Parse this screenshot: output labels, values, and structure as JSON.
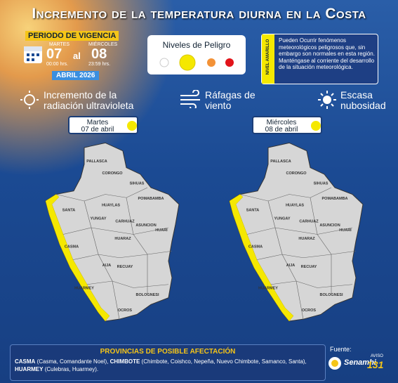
{
  "header": {
    "title": "Incremento de la temperatura diurna en la Costa"
  },
  "period": {
    "label": "PERIODO DE VIGENCIA",
    "start_day": "MARTES",
    "start_date": "07",
    "start_time": "00:00 hrs.",
    "connector": "al",
    "end_day": "MIÉRCOLES",
    "end_date": "08",
    "end_time": "23:59 hrs.",
    "month": "ABRIL 2026"
  },
  "levels": {
    "title": "Niveles de Peligro"
  },
  "notice": {
    "level": "NIVEL AMARILLO",
    "text": "Pueden Ocurrir fenómenos meteorológicos peligrosos que, sin embargo son normales en esta región. Manténgase al corriente del desarrollo de la situación meteorológica."
  },
  "phenomena": [
    "Incremento de la radiación ultravioleta",
    "Ráfagas de viento",
    "Escasa nubosidad"
  ],
  "maps": [
    {
      "day": "Martes",
      "date": "07 de abril",
      "provinces": [
        "PALLASCA",
        "CORONGO",
        "SIHUAS",
        "POMABAMBA",
        "HUAYLAS",
        "SANTA",
        "YUNGAY",
        "CARHUAZ",
        "ASUNCION",
        "HUARI",
        "CASMA",
        "HUARAZ",
        "AIJA",
        "RECUAY",
        "HUARMEY",
        "BOLOGNESI",
        "OCROS"
      ]
    },
    {
      "day": "Miércoles",
      "date": "08 de abril",
      "provinces": [
        "PALLASCA",
        "CORONGO",
        "SIHUAS",
        "POMABAMBA",
        "HUAYLAS",
        "SANTA",
        "YUNGAY",
        "CARHUAZ",
        "ASUNCION",
        "HUARI",
        "CASMA",
        "HUARAZ",
        "AIJA",
        "RECUAY",
        "HUARMEY",
        "BOLOGNESI",
        "OCROS"
      ]
    }
  ],
  "affected": {
    "title": "PROVINCIAS DE POSIBLE AFECTACIÓN",
    "items": [
      {
        "province": "CASMA",
        "districts": "(Casma, Comandante Noel),"
      },
      {
        "province": "CHIMBOTE",
        "districts": "(Chimbote, Coishco, Nepeña, Nuevo Chimbote, Samanco, Santa),"
      },
      {
        "province": "HUARMEY",
        "districts": "(Culebras, Huarmey)."
      }
    ]
  },
  "source": {
    "label": "Fuente:",
    "name": "Senamhi",
    "notice_label": "AVISO",
    "notice_number": "131"
  }
}
